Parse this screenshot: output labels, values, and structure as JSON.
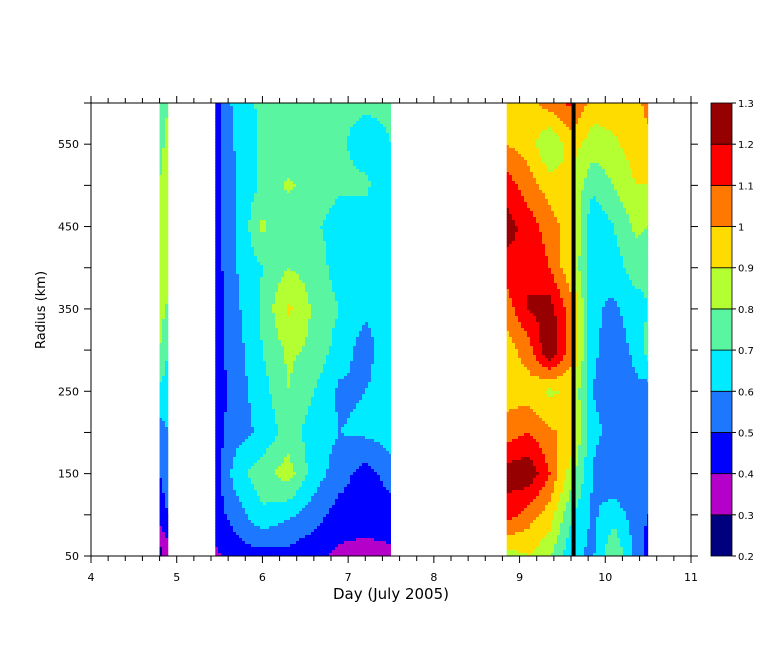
{
  "chart_data": {
    "type": "heatmap",
    "title": "",
    "xlabel": "Day (July 2005)",
    "ylabel": "Radius (km)",
    "xlim": [
      4,
      11
    ],
    "ylim": [
      50,
      600
    ],
    "x_ticks": [
      4,
      5,
      6,
      7,
      8,
      9,
      10,
      11
    ],
    "x_tick_labels": [
      "4",
      "5",
      "6",
      "7",
      "8",
      "9",
      "10",
      "11"
    ],
    "y_ticks": [
      50,
      150,
      250,
      350,
      450,
      550
    ],
    "y_tick_labels": [
      "50",
      "150",
      "250",
      "350",
      "450",
      "550"
    ],
    "colorbar": {
      "levels": [
        0.2,
        0.3,
        0.4,
        0.5,
        0.6,
        0.7,
        0.8,
        0.9,
        1.0,
        1.1,
        1.2,
        1.3
      ],
      "labels": [
        "0.2",
        "0.3",
        "0.4",
        "0.5",
        "0.6",
        "0.7",
        "0.8",
        "0.9",
        "1",
        "1.1",
        "1.2",
        "1.3"
      ],
      "colors": [
        "#00007f",
        "#b400c8",
        "#0000ff",
        "#1e78ff",
        "#00ebff",
        "#5af5a0",
        "#b4ff32",
        "#ffdc00",
        "#ff7800",
        "#ff0000",
        "#960000"
      ]
    },
    "vertical_line_day": 9.63,
    "segments": [
      {
        "x": [
          4.8,
          4.9
        ],
        "radius": [
          600,
          500,
          400,
          300,
          200,
          100,
          50
        ],
        "values": [
          [
            0.75,
            0.8
          ],
          [
            0.8,
            0.85
          ],
          [
            0.9,
            0.85
          ],
          [
            0.8,
            0.7
          ],
          [
            0.55,
            0.6
          ],
          [
            0.45,
            0.5
          ],
          [
            0.25,
            0.35
          ]
        ]
      },
      {
        "x": [
          5.45,
          5.7,
          6.0,
          6.3,
          6.6,
          6.9,
          7.2,
          7.5
        ],
        "radius": [
          600,
          550,
          500,
          450,
          400,
          350,
          300,
          250,
          200,
          150,
          100,
          50
        ],
        "values": [
          [
            0.45,
            0.65,
            0.72,
            0.72,
            0.72,
            0.72,
            0.72,
            0.72
          ],
          [
            0.45,
            0.62,
            0.72,
            0.72,
            0.72,
            0.72,
            0.65,
            0.7
          ],
          [
            0.45,
            0.6,
            0.72,
            0.82,
            0.75,
            0.72,
            0.72,
            0.62
          ],
          [
            0.45,
            0.6,
            0.82,
            0.72,
            0.72,
            0.65,
            0.65,
            0.62
          ],
          [
            0.45,
            0.6,
            0.7,
            0.8,
            0.76,
            0.65,
            0.62,
            0.6
          ],
          [
            0.45,
            0.58,
            0.72,
            0.92,
            0.78,
            0.7,
            0.62,
            0.62
          ],
          [
            0.45,
            0.56,
            0.7,
            0.82,
            0.78,
            0.65,
            0.55,
            0.7
          ],
          [
            0.45,
            0.55,
            0.66,
            0.8,
            0.7,
            0.58,
            0.6,
            0.65
          ],
          [
            0.45,
            0.56,
            0.62,
            0.75,
            0.65,
            0.6,
            0.62,
            0.65
          ],
          [
            0.45,
            0.66,
            0.76,
            0.85,
            0.65,
            0.55,
            0.45,
            0.55
          ],
          [
            0.45,
            0.55,
            0.68,
            0.62,
            0.55,
            0.45,
            0.45,
            0.45
          ],
          [
            0.38,
            0.45,
            0.46,
            0.46,
            0.42,
            0.38,
            0.36,
            0.38
          ]
        ]
      },
      {
        "x": [
          8.85,
          9.1,
          9.35,
          9.6,
          9.85,
          10.1,
          10.35,
          10.5
        ],
        "radius": [
          600,
          550,
          500,
          450,
          400,
          350,
          300,
          250,
          200,
          150,
          100,
          50
        ],
        "values": [
          [
            0.95,
            0.95,
            1.05,
            1.12,
            0.95,
            0.95,
            0.95,
            1.05
          ],
          [
            1.0,
            0.95,
            0.8,
            0.95,
            0.85,
            0.88,
            0.95,
            0.95
          ],
          [
            1.15,
            1.05,
            0.95,
            0.9,
            0.72,
            0.8,
            0.9,
            0.9
          ],
          [
            1.25,
            1.15,
            1.05,
            0.95,
            0.62,
            0.7,
            0.82,
            0.8
          ],
          [
            1.15,
            1.2,
            1.1,
            0.92,
            0.6,
            0.65,
            0.75,
            0.72
          ],
          [
            1.05,
            1.2,
            1.25,
            1.05,
            0.62,
            0.58,
            0.65,
            0.7
          ],
          [
            0.95,
            1.05,
            1.3,
            1.05,
            0.62,
            0.55,
            0.62,
            0.75
          ],
          [
            0.95,
            0.95,
            0.88,
            0.92,
            0.6,
            0.55,
            0.58,
            0.55
          ],
          [
            1.05,
            1.1,
            1.02,
            0.96,
            0.62,
            0.58,
            0.58,
            0.55
          ],
          [
            1.25,
            1.28,
            1.1,
            0.85,
            0.6,
            0.5,
            0.55,
            0.55
          ],
          [
            1.15,
            1.05,
            0.95,
            0.72,
            0.58,
            0.66,
            0.55,
            0.5
          ],
          [
            0.85,
            0.9,
            0.82,
            0.62,
            0.58,
            0.8,
            0.58,
            0.45
          ]
        ]
      }
    ]
  }
}
